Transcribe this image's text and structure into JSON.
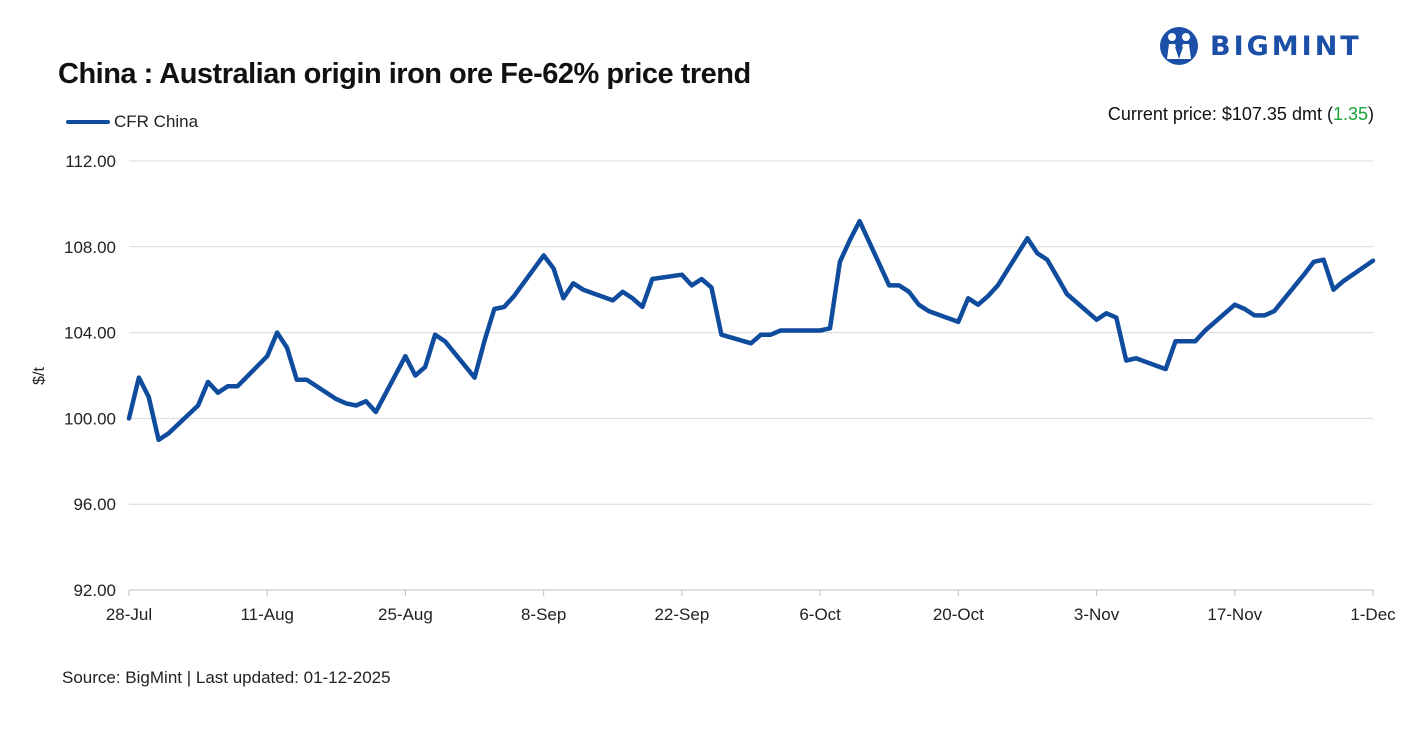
{
  "header": {
    "title": "China : Australian origin iron ore Fe-62% price trend",
    "logo_text": "BIGMINT",
    "current_price_label": "Current price: $107.35 dmt (",
    "current_price_change": "1.35",
    "current_price_suffix": ")"
  },
  "footer": {
    "source": "Source: BigMint | Last updated: 01-12-2025"
  },
  "colors": {
    "series": "#0f4c9e",
    "brand": "#1b4fa8",
    "change_positive": "#19a33a",
    "grid": "#d9d9d9"
  },
  "chart_data": {
    "type": "line",
    "ylabel": "$/t",
    "ylim": [
      92,
      112
    ],
    "yticks": [
      "112.00",
      "108.00",
      "104.00",
      "100.00",
      "96.00",
      "92.00"
    ],
    "ytick_values": [
      112,
      108,
      104,
      100,
      96,
      92
    ],
    "xticks": [
      "28-Jul",
      "11-Aug",
      "25-Aug",
      "8-Sep",
      "22-Sep",
      "6-Oct",
      "20-Oct",
      "3-Nov",
      "17-Nov",
      "1-Dec"
    ],
    "xlim": [
      "2025-07-28",
      "2025-12-01"
    ],
    "grid": "horizontal",
    "legend_position": "top-left",
    "series": [
      {
        "name": "CFR China",
        "x": [
          "2025-07-28",
          "2025-07-29",
          "2025-07-30",
          "2025-07-31",
          "2025-08-01",
          "2025-08-04",
          "2025-08-05",
          "2025-08-06",
          "2025-08-07",
          "2025-08-08",
          "2025-08-11",
          "2025-08-12",
          "2025-08-13",
          "2025-08-14",
          "2025-08-15",
          "2025-08-18",
          "2025-08-19",
          "2025-08-20",
          "2025-08-21",
          "2025-08-22",
          "2025-08-25",
          "2025-08-26",
          "2025-08-27",
          "2025-08-28",
          "2025-08-29",
          "2025-09-01",
          "2025-09-02",
          "2025-09-03",
          "2025-09-04",
          "2025-09-05",
          "2025-09-08",
          "2025-09-09",
          "2025-09-10",
          "2025-09-11",
          "2025-09-12",
          "2025-09-15",
          "2025-09-16",
          "2025-09-17",
          "2025-09-18",
          "2025-09-19",
          "2025-09-22",
          "2025-09-23",
          "2025-09-24",
          "2025-09-25",
          "2025-09-26",
          "2025-09-29",
          "2025-09-30",
          "2025-10-01",
          "2025-10-02",
          "2025-10-03",
          "2025-10-06",
          "2025-10-07",
          "2025-10-08",
          "2025-10-09",
          "2025-10-10",
          "2025-10-13",
          "2025-10-14",
          "2025-10-15",
          "2025-10-16",
          "2025-10-17",
          "2025-10-20",
          "2025-10-21",
          "2025-10-22",
          "2025-10-23",
          "2025-10-24",
          "2025-10-27",
          "2025-10-28",
          "2025-10-29",
          "2025-10-30",
          "2025-10-31",
          "2025-11-03",
          "2025-11-04",
          "2025-11-05",
          "2025-11-06",
          "2025-11-07",
          "2025-11-10",
          "2025-11-11",
          "2025-11-12",
          "2025-11-13",
          "2025-11-14",
          "2025-11-17",
          "2025-11-18",
          "2025-11-19",
          "2025-11-20",
          "2025-11-21",
          "2025-11-24",
          "2025-11-25",
          "2025-11-26",
          "2025-11-27",
          "2025-11-28",
          "2025-12-01"
        ],
        "y": [
          100.0,
          101.9,
          101.0,
          99.0,
          99.3,
          100.6,
          101.7,
          101.2,
          101.5,
          101.5,
          102.9,
          104.0,
          103.3,
          101.8,
          101.8,
          100.9,
          100.7,
          100.6,
          100.8,
          100.3,
          102.9,
          102.0,
          102.4,
          103.9,
          103.6,
          101.9,
          103.6,
          105.1,
          105.2,
          105.7,
          107.6,
          107.0,
          105.6,
          106.3,
          106.0,
          105.5,
          105.9,
          105.6,
          105.2,
          106.5,
          106.7,
          106.2,
          106.5,
          106.1,
          103.9,
          103.5,
          103.9,
          103.9,
          104.1,
          104.1,
          104.1,
          104.2,
          107.3,
          108.3,
          109.2,
          106.2,
          106.2,
          105.9,
          105.3,
          105.0,
          104.5,
          105.6,
          105.3,
          105.7,
          106.2,
          108.4,
          107.7,
          107.4,
          106.6,
          105.8,
          104.6,
          104.9,
          104.7,
          102.7,
          102.8,
          102.3,
          103.6,
          103.6,
          103.6,
          104.1,
          105.3,
          105.1,
          104.8,
          104.8,
          105.0,
          106.7,
          107.3,
          107.4,
          106.0,
          106.4,
          107.35
        ]
      }
    ]
  }
}
